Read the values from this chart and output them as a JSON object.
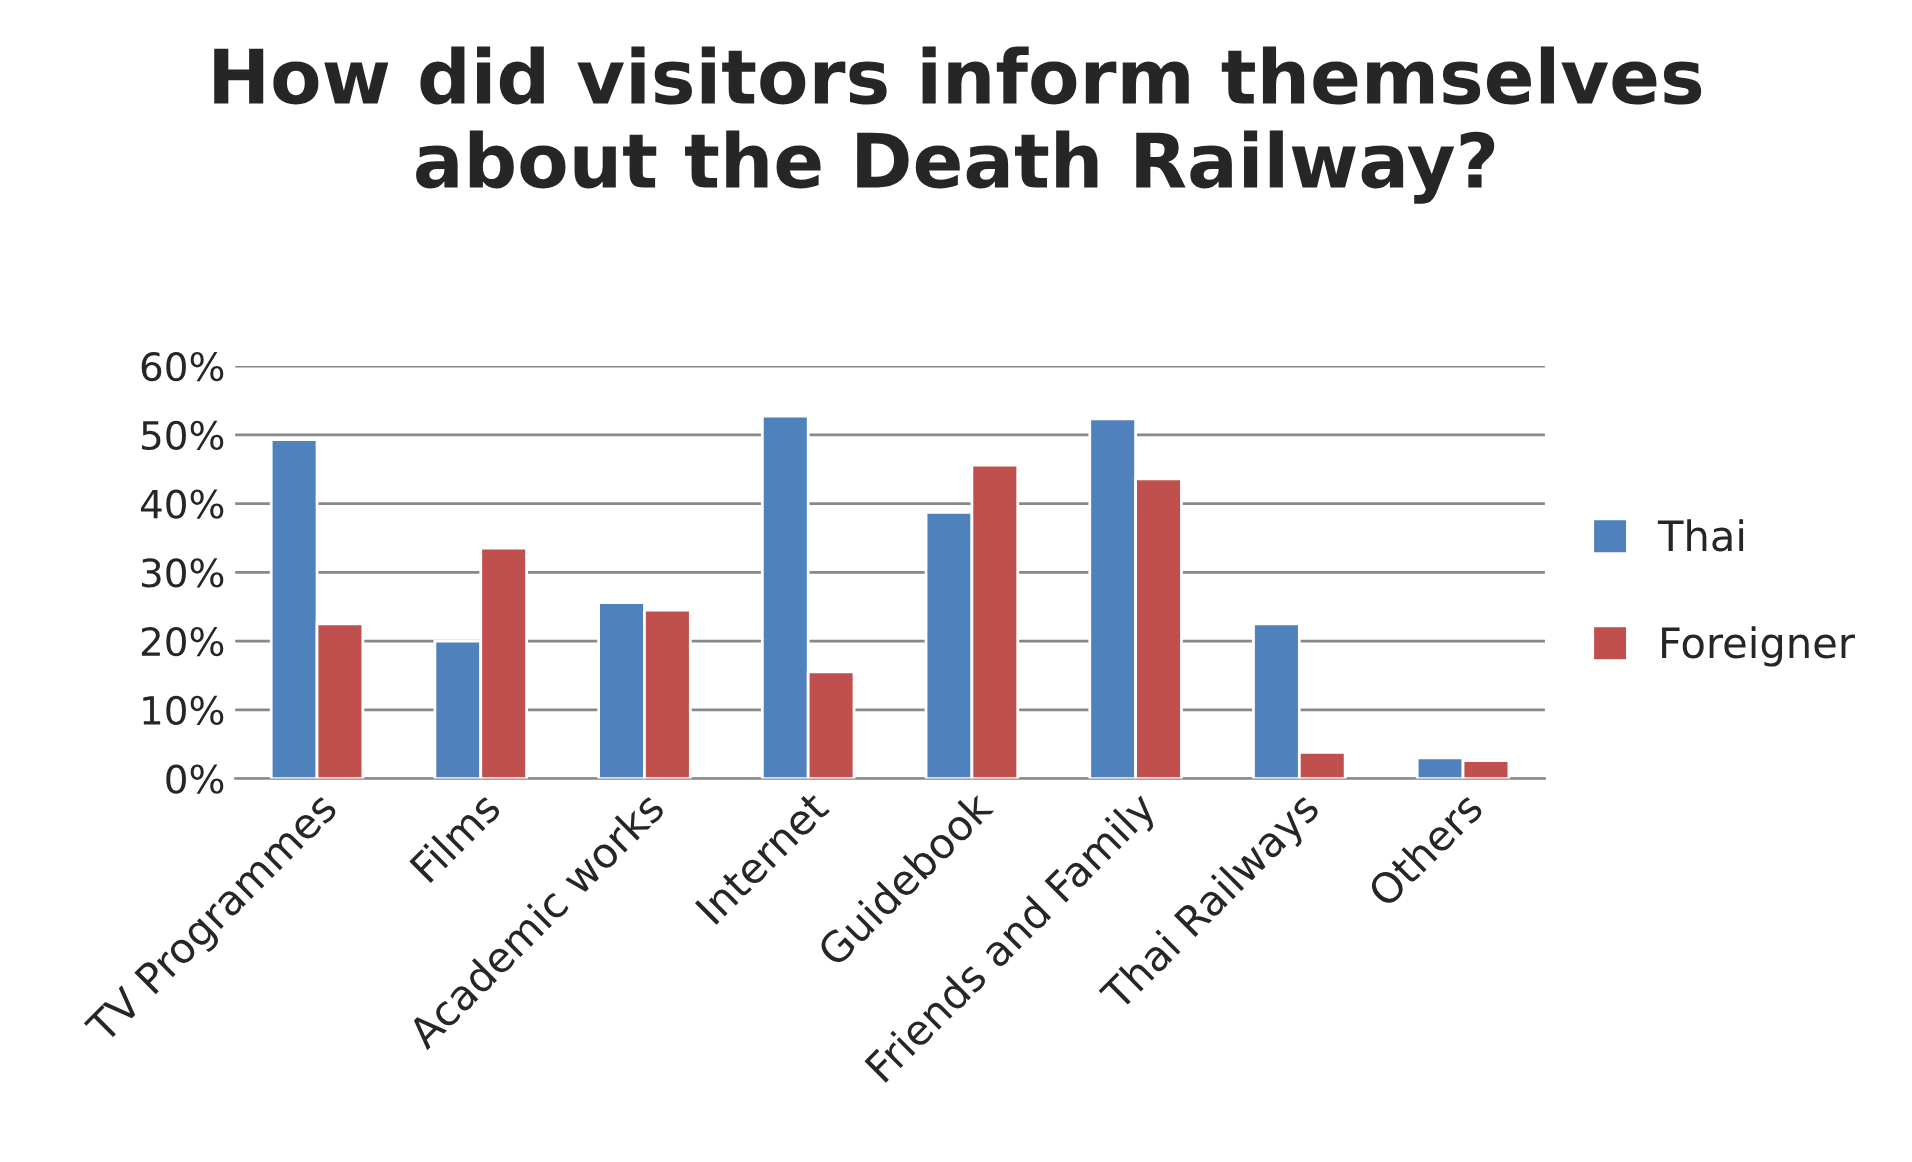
{
  "chart_data": {
    "type": "bar",
    "title": "How did visitors inform themselves\nabout the Death Railway?",
    "categories": [
      "TV Programmes",
      "Films",
      "Academic works",
      "Internet",
      "Guidebook",
      "Friends and Family",
      "Thai Railways",
      "Others"
    ],
    "series": [
      {
        "name": "Thai",
        "color": "#4f81bd",
        "values": [
          49.3,
          20.0,
          25.6,
          52.7,
          38.7,
          52.3,
          22.5,
          3.0
        ]
      },
      {
        "name": "Foreigner",
        "color": "#c0504d",
        "values": [
          22.5,
          33.5,
          24.5,
          15.5,
          45.6,
          43.6,
          3.8,
          2.6
        ]
      }
    ],
    "ylim": [
      0,
      60
    ],
    "yticks": [
      {
        "value": 0,
        "label": "0%"
      },
      {
        "value": 10,
        "label": "10%"
      },
      {
        "value": 20,
        "label": "20%"
      },
      {
        "value": 30,
        "label": "30%"
      },
      {
        "value": 40,
        "label": "40%"
      },
      {
        "value": 50,
        "label": "50%"
      },
      {
        "value": 60,
        "label": "60%"
      }
    ],
    "grid": "y",
    "legend": "right"
  }
}
